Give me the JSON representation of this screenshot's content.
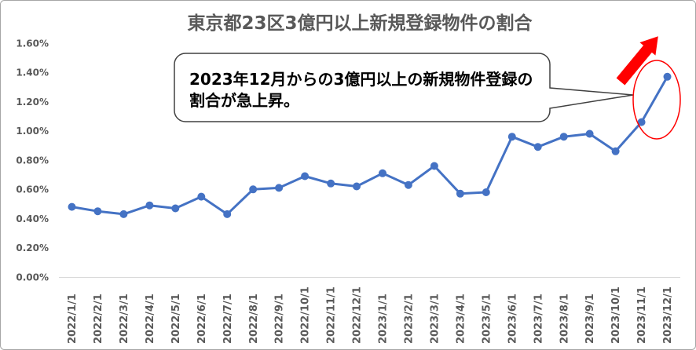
{
  "chart_data": {
    "type": "line",
    "title": "東京都23区3億円以上新規登録物件の割合",
    "categories": [
      "2022/1/1",
      "2022/2/1",
      "2022/3/1",
      "2022/4/1",
      "2022/5/1",
      "2022/6/1",
      "2022/7/1",
      "2022/8/1",
      "2022/9/1",
      "2022/10/1",
      "2022/11/1",
      "2022/12/1",
      "2023/1/1",
      "2023/2/1",
      "2023/3/1",
      "2023/4/1",
      "2023/5/1",
      "2023/6/1",
      "2023/7/1",
      "2023/8/1",
      "2023/9/1",
      "2023/10/1",
      "2023/11/1",
      "2023/12/1"
    ],
    "series": [
      {
        "values": [
          0.48,
          0.45,
          0.43,
          0.49,
          0.47,
          0.55,
          0.43,
          0.6,
          0.61,
          0.69,
          0.64,
          0.62,
          0.71,
          0.63,
          0.76,
          0.57,
          0.58,
          0.96,
          0.89,
          0.96,
          0.98,
          0.86,
          1.06,
          1.37
        ]
      }
    ],
    "ylim": [
      0,
      1.6
    ],
    "yticks": [
      0,
      0.2,
      0.4,
      0.6,
      0.8,
      1.0,
      1.2,
      1.4,
      1.6
    ],
    "ytick_labels": [
      "0.00%",
      "0.20%",
      "0.40%",
      "0.60%",
      "0.80%",
      "1.00%",
      "1.20%",
      "1.40%",
      "1.60%"
    ],
    "grid": false,
    "annotations": [
      {
        "lines": [
          "2023年12月からの3億円以上の新規物件登録の",
          "割合が急上昇。"
        ]
      }
    ]
  },
  "colors": {
    "line": "#4472C4",
    "highlight": "#FF0000",
    "text": "#595959",
    "axis": "#D9D9D9",
    "frame": "#A6A6A6",
    "callout_border": "#404040"
  }
}
